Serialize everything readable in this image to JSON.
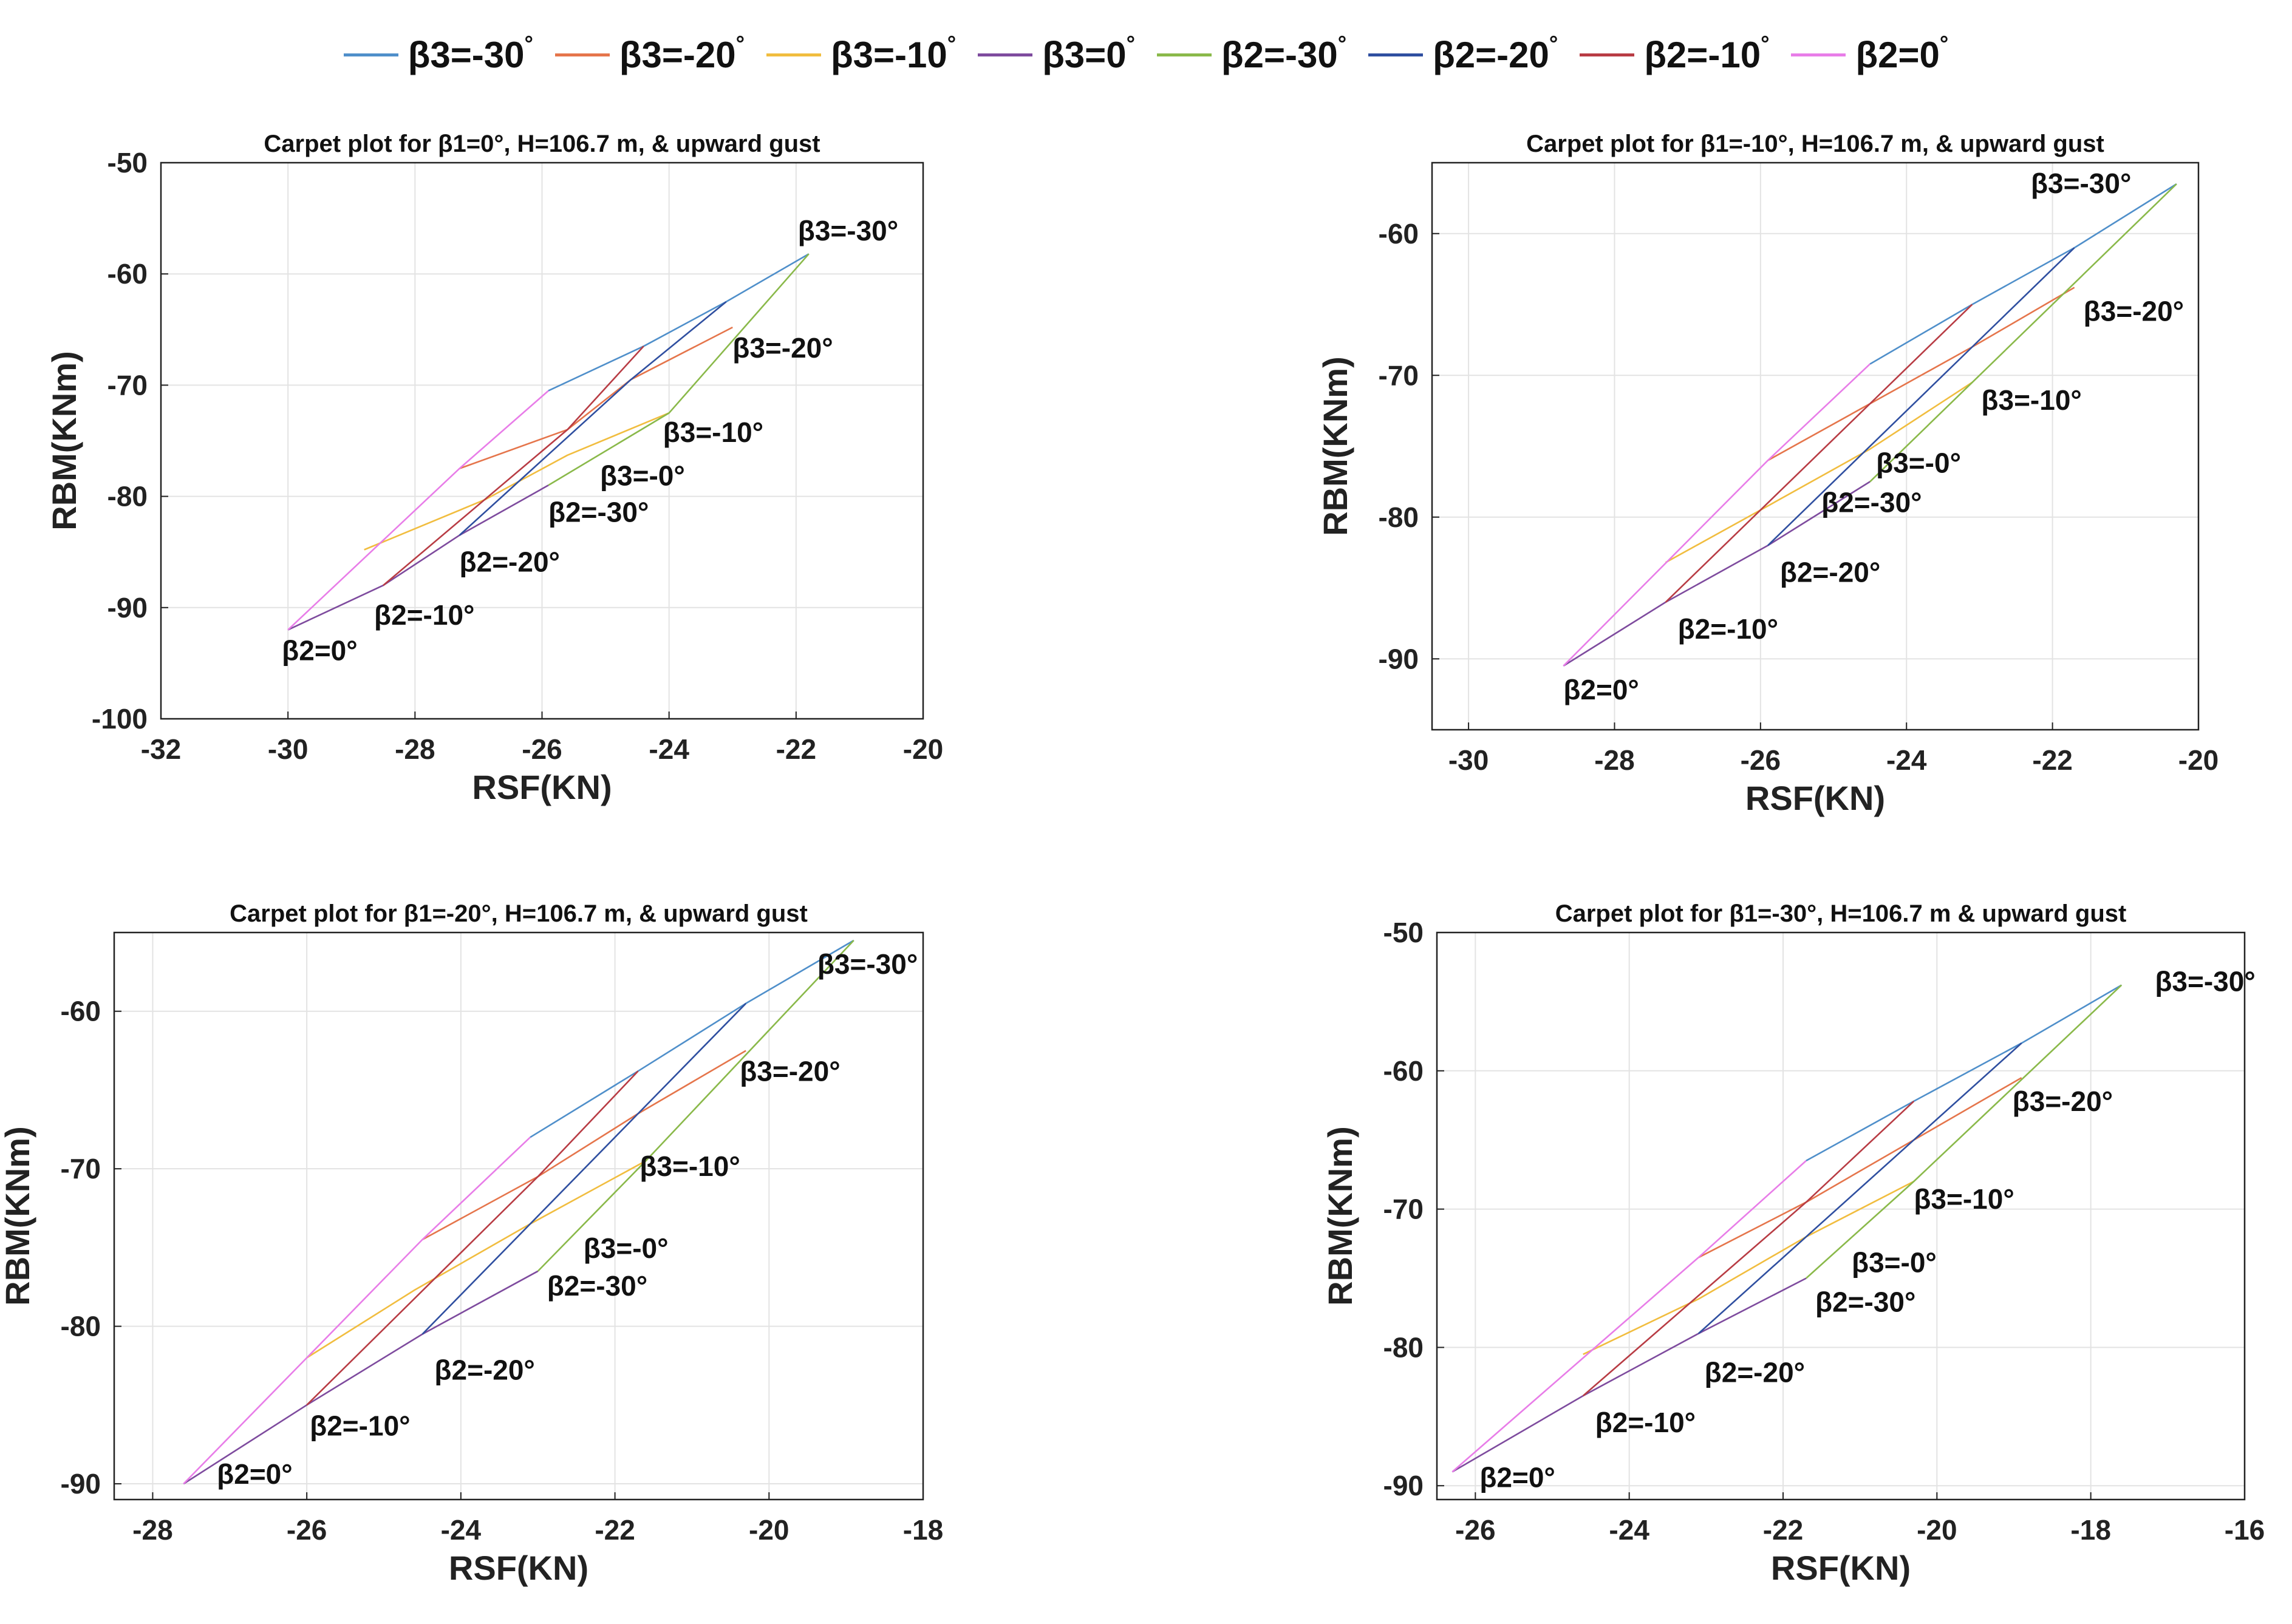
{
  "legend": [
    {
      "label": "β3=-30",
      "color": "#4f8fca"
    },
    {
      "label": "β3=-20",
      "color": "#e5754b"
    },
    {
      "label": "β3=-10",
      "color": "#f1bd3f"
    },
    {
      "label": "β3=0",
      "color": "#7e4b9e"
    },
    {
      "label": "β2=-30",
      "color": "#8ab94a"
    },
    {
      "label": "β2=-20",
      "color": "#2f4fa0"
    },
    {
      "label": "β2=-10",
      "color": "#b83c44"
    },
    {
      "label": "β2=0",
      "color": "#e87de8"
    }
  ],
  "legend_degree_mark": "°",
  "chart_data": [
    {
      "type": "line",
      "title": "Carpet plot for β1=0°, H=106.7 m, & upward gust",
      "xlabel": "RSF(KN)",
      "ylabel": "RBM(KNm)",
      "xlim": [
        -32,
        -20
      ],
      "ylim": [
        -100,
        -50
      ],
      "xticks": [
        -32,
        -30,
        -28,
        -26,
        -24,
        -22,
        -20
      ],
      "yticks": [
        -50,
        -60,
        -70,
        -80,
        -90,
        -100
      ],
      "grid": true,
      "b2_curves": [
        {
          "name": "β2=0",
          "x": [
            -30.0,
            -27.3,
            -25.9
          ],
          "y": [
            -92.0,
            -77.5,
            -70.5
          ]
        },
        {
          "name": "β2=-10",
          "x": [
            -28.5,
            -25.6,
            -24.4
          ],
          "y": [
            -88.0,
            -74.0,
            -66.5
          ]
        },
        {
          "name": "β2=-20",
          "x": [
            -27.3,
            -24.6,
            -23.1
          ],
          "y": [
            -83.5,
            -69.5,
            -62.5
          ]
        },
        {
          "name": "β2=-30",
          "x": [
            -25.9,
            -24.0,
            -21.8
          ],
          "y": [
            -79.0,
            -72.5,
            -58.2
          ]
        }
      ],
      "b3_curves": [
        {
          "name": "β3=-30",
          "x": [
            -25.9,
            -24.4,
            -23.1,
            -21.8
          ],
          "y": [
            -70.5,
            -66.5,
            -62.5,
            -58.2
          ]
        },
        {
          "name": "β3=-20",
          "x": [
            -27.3,
            -25.6,
            -24.6,
            -23.0
          ],
          "y": [
            -77.5,
            -74.0,
            -69.5,
            -64.8
          ]
        },
        {
          "name": "β3=-10",
          "x": [
            -28.8,
            -26.9,
            -25.6,
            -24.0
          ],
          "y": [
            -84.8,
            -80.3,
            -76.3,
            -72.5
          ]
        },
        {
          "name": "β3=0",
          "x": [
            -30.0,
            -28.5,
            -27.3,
            -25.9
          ],
          "y": [
            -92.0,
            -88.0,
            -83.5,
            -79.0
          ]
        }
      ],
      "annotations": [
        {
          "text": "β3=-30°",
          "x": -21.8,
          "y": -58.2,
          "dx": -18,
          "dy": -22,
          "anchor": "start"
        },
        {
          "text": "β3=-20°",
          "x": -23.0,
          "y": -64.8,
          "dx": 0,
          "dy": 50,
          "anchor": "start"
        },
        {
          "text": "β3=-10°",
          "x": -24.0,
          "y": -72.5,
          "dx": -10,
          "dy": 48,
          "anchor": "start"
        },
        {
          "text": "β3=-0°",
          "x": -25.9,
          "y": -79.0,
          "dx": 85,
          "dy": 0,
          "anchor": "start"
        },
        {
          "text": "β2=-30°",
          "x": -25.9,
          "y": -79.0,
          "dx": 0,
          "dy": 60,
          "anchor": "start"
        },
        {
          "text": "β2=-20°",
          "x": -27.3,
          "y": -83.5,
          "dx": 0,
          "dy": 60,
          "anchor": "start"
        },
        {
          "text": "β2=-10°",
          "x": -28.5,
          "y": -88.0,
          "dx": -15,
          "dy": 65,
          "anchor": "start"
        },
        {
          "text": "β2=0°",
          "x": -30.0,
          "y": -92.0,
          "dx": -10,
          "dy": 50,
          "anchor": "start"
        }
      ]
    },
    {
      "type": "line",
      "title": "Carpet plot for β1=-10°, H=106.7 m, & upward gust",
      "xlabel": "RSF(KN)",
      "ylabel": "RBM(KNm)",
      "xlim": [
        -30.5,
        -20
      ],
      "ylim": [
        -95,
        -55
      ],
      "xticks": [
        -30,
        -28,
        -26,
        -24,
        -22,
        -20
      ],
      "yticks": [
        -60,
        -70,
        -80,
        -90
      ],
      "grid": true,
      "b2_curves": [
        {
          "name": "β2=0",
          "x": [
            -28.7,
            -25.9,
            -24.5
          ],
          "y": [
            -90.5,
            -76.0,
            -69.2
          ]
        },
        {
          "name": "β2=-10",
          "x": [
            -27.3,
            -24.5,
            -23.1
          ],
          "y": [
            -86.0,
            -72.0,
            -65.0
          ]
        },
        {
          "name": "β2=-20",
          "x": [
            -25.9,
            -23.1,
            -21.7
          ],
          "y": [
            -82.0,
            -68.0,
            -61.0
          ]
        },
        {
          "name": "β2=-30",
          "x": [
            -24.5,
            -23.1,
            -20.3
          ],
          "y": [
            -77.5,
            -70.5,
            -56.5
          ]
        }
      ],
      "b3_curves": [
        {
          "name": "β3=-30",
          "x": [
            -24.5,
            -23.1,
            -21.7,
            -20.3
          ],
          "y": [
            -69.2,
            -65.0,
            -61.0,
            -56.5
          ]
        },
        {
          "name": "β3=-20",
          "x": [
            -25.9,
            -24.5,
            -23.1,
            -21.7
          ],
          "y": [
            -76.0,
            -72.0,
            -68.0,
            -63.8
          ]
        },
        {
          "name": "β3=-10",
          "x": [
            -27.3,
            -26.0,
            -24.5,
            -23.1
          ],
          "y": [
            -83.2,
            -79.5,
            -75.2,
            -70.5
          ]
        },
        {
          "name": "β3=0",
          "x": [
            -28.7,
            -27.3,
            -25.9,
            -24.5
          ],
          "y": [
            -90.5,
            -86.0,
            -82.0,
            -77.5
          ]
        }
      ],
      "annotations": [
        {
          "text": "β3=-30°",
          "x": -20.3,
          "y": -56.5,
          "dx": -240,
          "dy": 15,
          "anchor": "start"
        },
        {
          "text": "β3=-20°",
          "x": -21.7,
          "y": -63.8,
          "dx": 15,
          "dy": 55,
          "anchor": "start"
        },
        {
          "text": "β3=-10°",
          "x": -23.1,
          "y": -70.5,
          "dx": 15,
          "dy": 45,
          "anchor": "start"
        },
        {
          "text": "β3=-0°",
          "x": -24.5,
          "y": -77.5,
          "dx": 10,
          "dy": -15,
          "anchor": "start"
        },
        {
          "text": "β2=-30°",
          "x": -24.5,
          "y": -77.5,
          "dx": -80,
          "dy": 50,
          "anchor": "start"
        },
        {
          "text": "β2=-20°",
          "x": -25.9,
          "y": -82.0,
          "dx": 20,
          "dy": 60,
          "anchor": "start"
        },
        {
          "text": "β2=-10°",
          "x": -27.3,
          "y": -86.0,
          "dx": 20,
          "dy": 60,
          "anchor": "start"
        },
        {
          "text": "β2=0°",
          "x": -28.7,
          "y": -90.5,
          "dx": 0,
          "dy": 55,
          "anchor": "start"
        }
      ]
    },
    {
      "type": "line",
      "title": "Carpet plot for β1=-20°, H=106.7 m, & upward gust",
      "xlabel": "RSF(KN)",
      "ylabel": "RBM(KNm)",
      "xlim": [
        -28.5,
        -18
      ],
      "ylim": [
        -91,
        -55
      ],
      "xticks": [
        -28,
        -26,
        -24,
        -22,
        -20,
        -18
      ],
      "yticks": [
        -60,
        -70,
        -80,
        -90
      ],
      "grid": true,
      "b2_curves": [
        {
          "name": "β2=0",
          "x": [
            -27.6,
            -24.5,
            -23.1
          ],
          "y": [
            -90.0,
            -74.5,
            -68.0
          ]
        },
        {
          "name": "β2=-10",
          "x": [
            -26.0,
            -23.0,
            -21.7
          ],
          "y": [
            -85.0,
            -70.5,
            -63.8
          ]
        },
        {
          "name": "β2=-20",
          "x": [
            -24.5,
            -21.7,
            -20.3
          ],
          "y": [
            -80.5,
            -66.5,
            -59.5
          ]
        },
        {
          "name": "β2=-30",
          "x": [
            -23.0,
            -21.6,
            -18.9
          ],
          "y": [
            -76.5,
            -69.5,
            -55.5
          ]
        }
      ],
      "b3_curves": [
        {
          "name": "β3=-30",
          "x": [
            -23.1,
            -21.7,
            -20.3,
            -18.9
          ],
          "y": [
            -68.0,
            -63.8,
            -59.5,
            -55.5
          ]
        },
        {
          "name": "β3=-20",
          "x": [
            -24.5,
            -23.0,
            -21.7,
            -20.3
          ],
          "y": [
            -74.5,
            -70.5,
            -66.5,
            -62.5
          ]
        },
        {
          "name": "β3=-10",
          "x": [
            -26.0,
            -24.6,
            -23.1,
            -21.6
          ],
          "y": [
            -82.0,
            -77.7,
            -73.5,
            -69.5
          ]
        },
        {
          "name": "β3=0",
          "x": [
            -27.6,
            -26.0,
            -24.5,
            -23.0
          ],
          "y": [
            -90.0,
            -85.0,
            -80.5,
            -76.5
          ]
        }
      ],
      "annotations": [
        {
          "text": "β3=-30°",
          "x": -18.9,
          "y": -55.5,
          "dx": -60,
          "dy": 55,
          "anchor": "start"
        },
        {
          "text": "β3=-20°",
          "x": -20.3,
          "y": -62.5,
          "dx": -10,
          "dy": 50,
          "anchor": "start"
        },
        {
          "text": "β3=-10°",
          "x": -21.6,
          "y": -69.5,
          "dx": -10,
          "dy": 25,
          "anchor": "start"
        },
        {
          "text": "β3=-0°",
          "x": -23.0,
          "y": -76.5,
          "dx": 75,
          "dy": -22,
          "anchor": "start"
        },
        {
          "text": "β2=-30°",
          "x": -23.0,
          "y": -76.5,
          "dx": 15,
          "dy": 40,
          "anchor": "start"
        },
        {
          "text": "β2=-20°",
          "x": -24.5,
          "y": -80.5,
          "dx": 20,
          "dy": 75,
          "anchor": "start"
        },
        {
          "text": "β2=-10°",
          "x": -26.0,
          "y": -85.0,
          "dx": 5,
          "dy": 50,
          "anchor": "start"
        },
        {
          "text": "β2=0°",
          "x": -27.6,
          "y": -90.0,
          "dx": 55,
          "dy": 0,
          "anchor": "start"
        }
      ]
    },
    {
      "type": "line",
      "title": "Carpet plot for β1=-30°, H=106.7 m & upward gust",
      "xlabel": "RSF(KN)",
      "ylabel": "RBM(KNm)",
      "xlim": [
        -26.5,
        -16
      ],
      "ylim": [
        -91,
        -50
      ],
      "xticks": [
        -26,
        -24,
        -22,
        -20,
        -18,
        -16
      ],
      "yticks": [
        -50,
        -60,
        -70,
        -80,
        -90
      ],
      "grid": true,
      "b2_curves": [
        {
          "name": "β2=0",
          "x": [
            -26.3,
            -23.1,
            -21.7
          ],
          "y": [
            -89.0,
            -73.5,
            -66.5
          ]
        },
        {
          "name": "β2=-10",
          "x": [
            -24.6,
            -21.7,
            -20.3
          ],
          "y": [
            -83.5,
            -69.5,
            -62.2
          ]
        },
        {
          "name": "β2=-20",
          "x": [
            -23.1,
            -20.3,
            -18.9
          ],
          "y": [
            -79.0,
            -65.0,
            -58.0
          ]
        },
        {
          "name": "β2=-30",
          "x": [
            -21.7,
            -20.3,
            -17.6
          ],
          "y": [
            -75.0,
            -68.0,
            -53.8
          ]
        }
      ],
      "b3_curves": [
        {
          "name": "β3=-30",
          "x": [
            -21.7,
            -20.3,
            -18.9,
            -17.6
          ],
          "y": [
            -66.5,
            -62.2,
            -58.0,
            -53.8
          ]
        },
        {
          "name": "β3=-20",
          "x": [
            -23.1,
            -21.7,
            -20.3,
            -18.9
          ],
          "y": [
            -73.5,
            -69.5,
            -65.0,
            -60.5
          ]
        },
        {
          "name": "β3=-10",
          "x": [
            -24.6,
            -23.1,
            -21.7,
            -20.3
          ],
          "y": [
            -80.5,
            -76.5,
            -72.0,
            -68.0
          ]
        },
        {
          "name": "β3=0",
          "x": [
            -26.3,
            -24.6,
            -23.1,
            -21.7
          ],
          "y": [
            -89.0,
            -83.5,
            -79.0,
            -75.0
          ]
        }
      ],
      "annotations": [
        {
          "text": "β3=-30°",
          "x": -17.6,
          "y": -53.8,
          "dx": 55,
          "dy": 10,
          "anchor": "start"
        },
        {
          "text": "β3=-20°",
          "x": -18.9,
          "y": -60.5,
          "dx": -15,
          "dy": 55,
          "anchor": "start"
        },
        {
          "text": "β3=-10°",
          "x": -20.3,
          "y": -68.0,
          "dx": 0,
          "dy": 45,
          "anchor": "start"
        },
        {
          "text": "β3=-0°",
          "x": -21.7,
          "y": -75.0,
          "dx": 75,
          "dy": -10,
          "anchor": "start"
        },
        {
          "text": "β2=-30°",
          "x": -21.7,
          "y": -75.0,
          "dx": 15,
          "dy": 55,
          "anchor": "start"
        },
        {
          "text": "β2=-20°",
          "x": -23.1,
          "y": -79.0,
          "dx": 10,
          "dy": 80,
          "anchor": "start"
        },
        {
          "text": "β2=-10°",
          "x": -24.6,
          "y": -83.5,
          "dx": 20,
          "dy": 60,
          "anchor": "start"
        },
        {
          "text": "β2=0°",
          "x": -26.3,
          "y": -89.0,
          "dx": 45,
          "dy": 25,
          "anchor": "start"
        }
      ]
    }
  ]
}
